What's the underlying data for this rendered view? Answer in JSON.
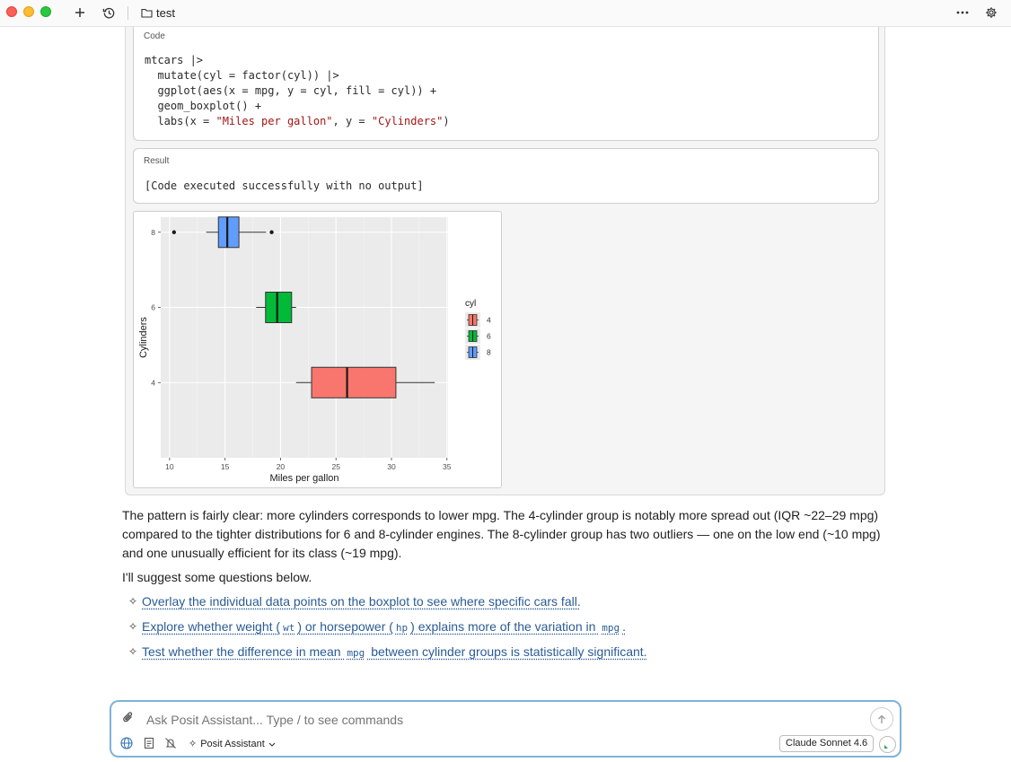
{
  "window": {
    "title": "test",
    "icons": {
      "new": "plus-icon",
      "history": "history-icon",
      "folder": "folder-icon",
      "more": "ellipsis-icon",
      "settings": "gear-icon"
    }
  },
  "code_block": {
    "label": "Code",
    "lines": [
      "mtcars |>",
      "  mutate(cyl = factor(cyl)) |>",
      "  ggplot(aes(x = mpg, y = cyl, fill = cyl)) +",
      "  geom_boxplot() +",
      "  labs(x = \"Miles per gallon\", y = \"Cylinders\")"
    ]
  },
  "result_block": {
    "label": "Result",
    "text": "[Code executed successfully with no output]"
  },
  "chart_data": {
    "type": "boxplot",
    "xlabel": "Miles per gallon",
    "ylabel": "Cylinders",
    "xlim": [
      9.2,
      35.1
    ],
    "x_ticks": [
      10,
      15,
      20,
      25,
      30,
      35
    ],
    "categories": [
      "4",
      "6",
      "8"
    ],
    "grid": true,
    "legend": {
      "title": "cyl",
      "position": "right",
      "entries": [
        "4",
        "6",
        "8"
      ]
    },
    "series": [
      {
        "name": "4",
        "color": "#f8766d",
        "min": 21.4,
        "q1": 22.8,
        "median": 26.0,
        "q3": 30.4,
        "max": 33.9,
        "outliers": []
      },
      {
        "name": "6",
        "color": "#00ba38",
        "min": 17.8,
        "q1": 18.65,
        "median": 19.7,
        "q3": 21.0,
        "max": 21.4,
        "outliers": []
      },
      {
        "name": "8",
        "color": "#619cff",
        "min": 13.3,
        "q1": 14.4,
        "median": 15.2,
        "q3": 16.25,
        "max": 18.7,
        "outliers": [
          10.4,
          19.2
        ]
      }
    ]
  },
  "response": {
    "paragraph1": "The pattern is fairly clear: more cylinders corresponds to lower mpg. The 4-cylinder group is notably more spread out (IQR ~22–29 mpg) compared to the tighter distributions for 6 and 8-cylinder engines. The 8-cylinder group has two outliers — one on the low end (~10 mpg) and one unusually efficient for its class (~19 mpg).",
    "paragraph2": "I'll suggest some questions below.",
    "suggestions": [
      {
        "parts": [
          "Overlay the individual data points on the boxplot to see where specific cars fall."
        ]
      },
      {
        "parts": [
          "Explore whether weight (",
          "wt",
          ") or horsepower (",
          "hp",
          ") explains more of the variation in ",
          "mpg",
          "."
        ]
      },
      {
        "parts": [
          "Test whether the difference in mean ",
          "mpg",
          " between cylinder groups is statistically significant."
        ]
      }
    ]
  },
  "input": {
    "placeholder": "Ask Posit Assistant... Type / to see commands",
    "agent_label": "Posit Assistant",
    "model_label": "Claude Sonnet 4.6",
    "icons": {
      "attach": "paperclip-icon",
      "send": "arrow-up-icon",
      "web": "globe-icon",
      "context": "document-icon",
      "notify": "bell-off-icon",
      "agent": "sparkle-icon",
      "chevron": "chevron-down-icon",
      "status": "status-indicator-icon"
    }
  }
}
